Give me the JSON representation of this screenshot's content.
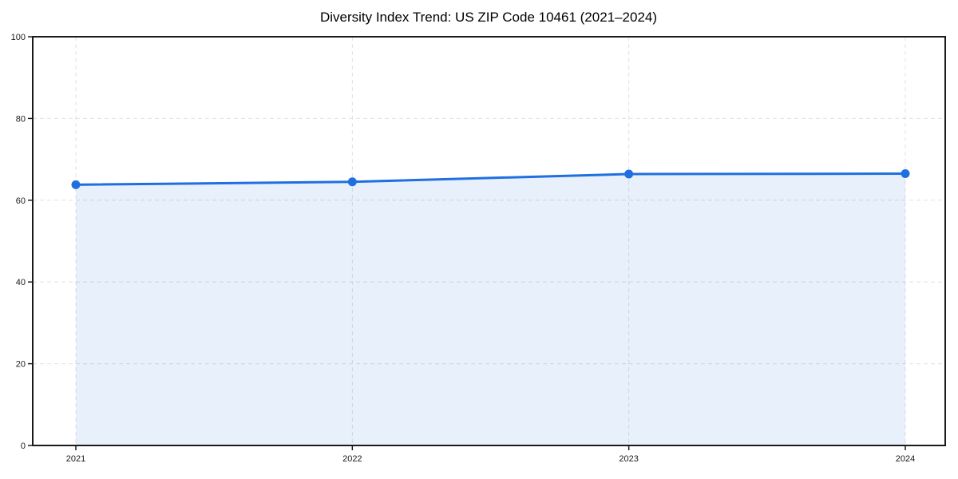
{
  "chart_data": {
    "type": "line",
    "title": "Diversity Index Trend: US ZIP Code 10461 (2021–2024)",
    "x": [
      2021,
      2022,
      2023,
      2024
    ],
    "series": [
      {
        "name": "Diversity Index",
        "values": [
          63.8,
          64.5,
          66.4,
          66.5
        ]
      }
    ],
    "xlabel": "",
    "ylabel": "",
    "ylim": [
      0,
      100
    ],
    "yticks": [
      0,
      20,
      40,
      60,
      80,
      100
    ],
    "xticks": [
      2021,
      2022,
      2023,
      2024
    ],
    "grid": true,
    "grid_style": "dashed",
    "legend": "none",
    "area_fill": true,
    "fill_opacity": 0.1,
    "marker": "circle",
    "colors": {
      "line": "#1f6fe0",
      "marker": "#1f6fe0",
      "fill": "#1f6fe0",
      "grid": "#e0e0e0",
      "axis": "#1a1a1a",
      "title_text": "#000000",
      "tick_text": "#1a1a1a",
      "background": "#ffffff"
    }
  }
}
